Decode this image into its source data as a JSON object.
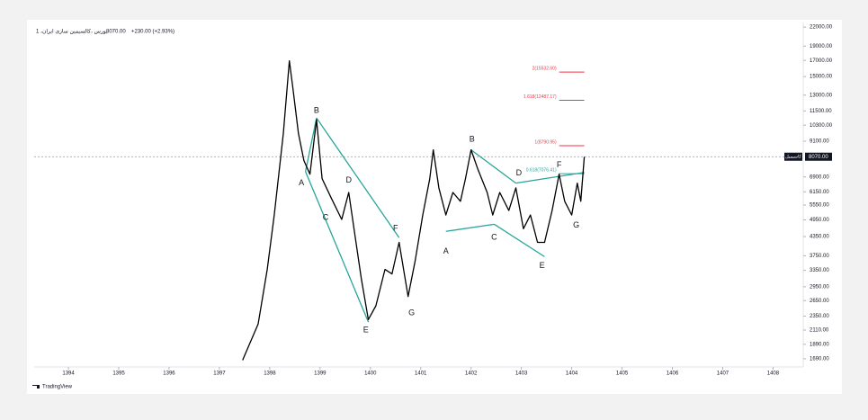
{
  "header": {
    "title": "بورس ،کالسیمین سازی ایران، 1",
    "price": "8070.00",
    "change": "+230.00 (+2.93%)"
  },
  "footer": {
    "brand": "TradingView"
  },
  "chart_data": {
    "type": "line",
    "log_scale": true,
    "color": "#000000",
    "x": [
      1397.46,
      1397.77,
      1397.95,
      1398.09,
      1398.27,
      1398.39,
      1398.46,
      1398.57,
      1398.68,
      1398.8,
      1398.93,
      1399.04,
      1399.21,
      1399.43,
      1399.57,
      1399.7,
      1399.82,
      1399.96,
      1400.11,
      1400.29,
      1400.43,
      1400.57,
      1400.75,
      1400.89,
      1401.04,
      1401.18,
      1401.25,
      1401.36,
      1401.5,
      1401.64,
      1401.79,
      1401.89,
      1402.0,
      1402.14,
      1402.32,
      1402.43,
      1402.57,
      1402.75,
      1402.89,
      1403.04,
      1403.18,
      1403.32,
      1403.46,
      1403.61,
      1403.75,
      1403.86,
      1404.0,
      1404.11,
      1404.18,
      1404.25
    ],
    "values": [
      1671,
      2213,
      3373,
      5140,
      9660,
      16950,
      13740,
      9660,
      7830,
      7050,
      10740,
      6810,
      5920,
      4966,
      6120,
      4315,
      3140,
      2290,
      2547,
      3373,
      3258,
      4159,
      2735,
      3614,
      5140,
      6810,
      8511,
      6339,
      5140,
      6120,
      5715,
      6810,
      8511,
      7295,
      6120,
      5140,
      6120,
      5321,
      6339,
      4624,
      5140,
      4159,
      4159,
      5321,
      7050,
      5715,
      5140,
      6577,
      5715,
      8070
    ],
    "xlim": [
      1393.32,
      1408.6
    ],
    "ylim": [
      1620,
      22800
    ],
    "xticks": [
      1394,
      1395,
      1396,
      1397,
      1398,
      1399,
      1400,
      1401,
      1402,
      1403,
      1404,
      1405,
      1406,
      1407,
      1408
    ],
    "yticks": [
      {
        "value": 22000,
        "label": "22000.00"
      },
      {
        "value": 19000,
        "label": "19000.00"
      },
      {
        "value": 17000,
        "label": "17000.00"
      },
      {
        "value": 15000,
        "label": "15000.00"
      },
      {
        "value": 13000,
        "label": "13000.00"
      },
      {
        "value": 11500,
        "label": "11500.00"
      },
      {
        "value": 10300,
        "label": "10300.00"
      },
      {
        "value": 9100,
        "label": "9100.00"
      },
      {
        "value": 6900,
        "label": "6900.00"
      },
      {
        "value": 6150,
        "label": "6150.00"
      },
      {
        "value": 5550,
        "label": "5550.00"
      },
      {
        "value": 4950,
        "label": "4950.00"
      },
      {
        "value": 4350,
        "label": "4350.00"
      },
      {
        "value": 3750,
        "label": "3750.00"
      },
      {
        "value": 3350,
        "label": "3350.00"
      },
      {
        "value": 2950,
        "label": "2950.00"
      },
      {
        "value": 2650,
        "label": "2650.00"
      },
      {
        "value": 2350,
        "label": "2350.00"
      },
      {
        "value": 2110,
        "label": "2110.00"
      },
      {
        "value": 1890,
        "label": "1890.00"
      },
      {
        "value": 1690,
        "label": "1690.00"
      }
    ],
    "last": {
      "value": 8070,
      "label": "8070.00",
      "name": "کاسیمیل"
    },
    "levels": [
      {
        "value": 15532.6,
        "label": "2(15532.60)",
        "color": "#f23645",
        "x": [
          1403.75,
          1404.25
        ]
      },
      {
        "value": 12487.17,
        "label": "1.618(12487.17)",
        "color": "#f23645",
        "x": [
          1403.75,
          1404.25
        ]
      },
      {
        "value": 8790.95,
        "label": "1(8790.95)",
        "color": "#f23645",
        "x": [
          1403.75,
          1404.25
        ]
      },
      {
        "value": 7076.41,
        "label": "0.618(7076.41)",
        "color": "#26a69a",
        "x": [
          1403.75,
          1404.25
        ]
      }
    ],
    "patterns": [
      {
        "color": "#26a69a",
        "lines": [
          {
            "x": [
              1398.71,
              1398.93
            ],
            "y": [
              7195,
              10890
            ]
          },
          {
            "x": [
              1398.71,
              1399.96
            ],
            "y": [
              7195,
              2244
            ]
          },
          {
            "x": [
              1398.93,
              1400.57
            ],
            "y": [
              10890,
              4315
            ]
          }
        ],
        "labels": [
          {
            "text": "A",
            "x": 1398.63,
            "y": 6577
          },
          {
            "text": "B",
            "x": 1398.93,
            "y": 11530
          },
          {
            "text": "C",
            "x": 1399.11,
            "y": 5035
          },
          {
            "text": "D",
            "x": 1399.57,
            "y": 6714
          },
          {
            "text": "E",
            "x": 1399.91,
            "y": 2109
          },
          {
            "text": "F",
            "x": 1400.5,
            "y": 4624
          },
          {
            "text": "G",
            "x": 1400.82,
            "y": 2410
          }
        ]
      },
      {
        "color": "#26a69a",
        "lines": [
          {
            "x": [
              1402.0,
              1402.89
            ],
            "y": [
              8511,
              6577
            ]
          },
          {
            "x": [
              1402.89,
              1404.25
            ],
            "y": [
              6577,
              7145
            ]
          },
          {
            "x": [
              1401.5,
              1402.46
            ],
            "y": [
              4529,
              4786
            ]
          },
          {
            "x": [
              1402.46,
              1403.46
            ],
            "y": [
              4786,
              3724
            ]
          }
        ],
        "labels": [
          {
            "text": "A",
            "x": 1401.5,
            "y": 3882
          },
          {
            "text": "B",
            "x": 1402.02,
            "y": 9204
          },
          {
            "text": "C",
            "x": 1402.46,
            "y": 4315
          },
          {
            "text": "D",
            "x": 1402.95,
            "y": 7100
          },
          {
            "text": "E",
            "x": 1403.41,
            "y": 3467
          },
          {
            "text": "F",
            "x": 1403.75,
            "y": 7568
          },
          {
            "text": "G",
            "x": 1404.09,
            "y": 4750
          }
        ]
      }
    ]
  }
}
